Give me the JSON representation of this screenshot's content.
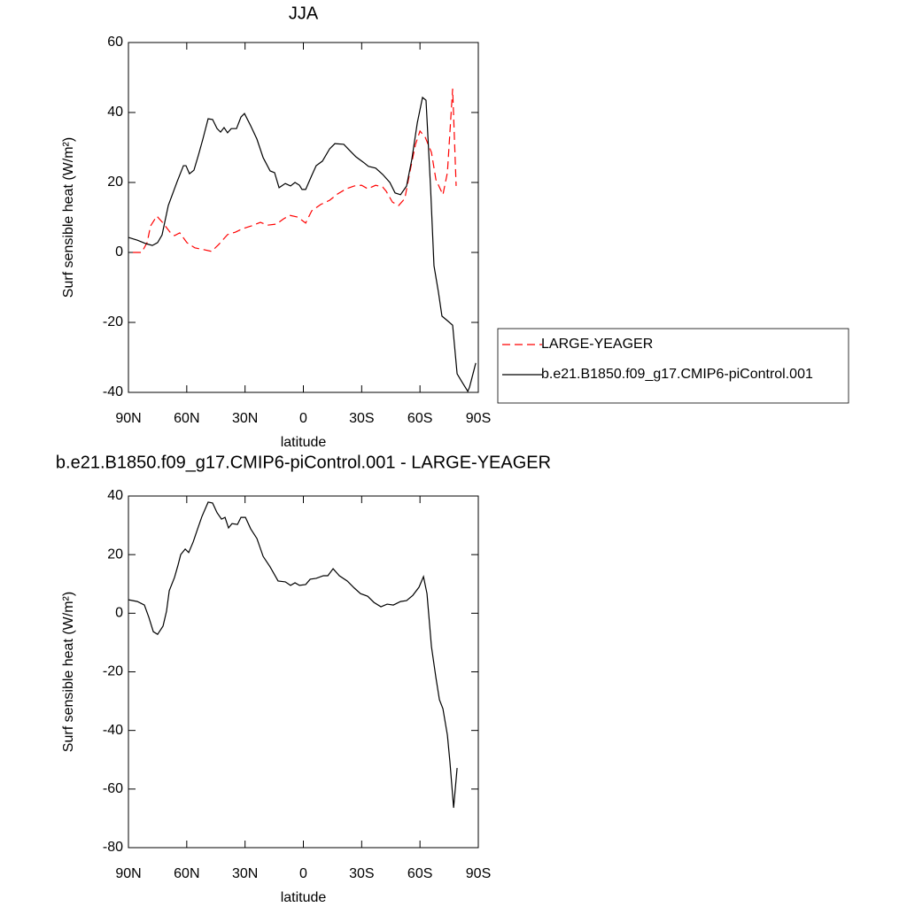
{
  "chart_data": [
    {
      "type": "line",
      "title": "JJA",
      "xlabel": "latitude",
      "ylabel": "Surf sensible heat (W/m²)",
      "xlim": [
        90,
        -90
      ],
      "xticks": [
        {
          "value": 90,
          "label": "90N"
        },
        {
          "value": 60,
          "label": "60N"
        },
        {
          "value": 30,
          "label": "30N"
        },
        0,
        {
          "value": -30,
          "label": "30S"
        },
        {
          "value": -60,
          "label": "60S"
        },
        {
          "value": -90,
          "label": "90S"
        }
      ],
      "ylim": [
        -40,
        60
      ],
      "yticks": [
        -40,
        -20,
        0,
        20,
        40,
        60
      ],
      "legend": "outside-right",
      "series": [
        {
          "name": "LARGE-YEAGER",
          "color": "#ff0000",
          "dash": "dashed",
          "x": [
            87.7,
            83.2,
            80.4,
            78.6,
            75.4,
            72.2,
            68.6,
            66.3,
            63.6,
            59.9,
            55.8,
            51.3,
            47.2,
            43.5,
            39,
            34.9,
            31.2,
            26.6,
            22.1,
            18.4,
            13.9,
            10.2,
            7,
            2.9,
            -1.2,
            -4.3,
            -8.9,
            -13.5,
            -17.6,
            -22.1,
            -26.2,
            -29.9,
            -33.1,
            -37.2,
            -40.8,
            -42.6,
            -45.8,
            -49,
            -52.2,
            -54.9,
            -57.7,
            -60,
            -62.7,
            -65.9,
            -68.2,
            -71.8,
            -74.1,
            -76.8,
            -78.6
          ],
          "values": [
            0,
            0,
            2.8,
            7.6,
            10.4,
            8.4,
            5.8,
            4.8,
            5.6,
            2.8,
            1.3,
            0.8,
            0.3,
            2.3,
            5.1,
            5.8,
            6.8,
            7.6,
            8.6,
            7.8,
            8.1,
            9.6,
            10.6,
            10.1,
            8.4,
            11.9,
            13.7,
            14.9,
            16.7,
            18.2,
            19,
            19.2,
            18.2,
            19.2,
            18.7,
            17.5,
            14.4,
            13.4,
            15.4,
            23.3,
            30.9,
            34.7,
            32.9,
            28.6,
            20.8,
            16.5,
            22.8,
            46.8,
            19
          ]
        },
        {
          "name": "b.e21.B1850.f09_g17.CMIP6-piControl.001",
          "color": "#000000",
          "dash": "solid",
          "x": [
            90,
            85.4,
            80.9,
            77.7,
            75,
            72.7,
            69.5,
            64.9,
            61.7,
            60.4,
            58.6,
            56.3,
            54,
            51.7,
            49,
            46.7,
            44.4,
            42.6,
            40.8,
            39,
            37.1,
            34.4,
            32.1,
            30.3,
            27.1,
            23.9,
            20.7,
            17.1,
            14.8,
            12.5,
            9.3,
            6.6,
            4.3,
            2,
            0.7,
            -1.2,
            -4.3,
            -6.6,
            -9.8,
            -13.5,
            -16.2,
            -20.8,
            -23.9,
            -27.1,
            -30.8,
            -33.5,
            -37.2,
            -40.8,
            -44.5,
            -47.2,
            -50,
            -53.1,
            -55.8,
            -58.6,
            -61.3,
            -63.1,
            -65.4,
            -67.2,
            -69.5,
            -71.3,
            -74.1,
            -76.8,
            -79.1,
            -81.8,
            -84.6,
            -85.5,
            -88.7
          ],
          "values": [
            4.3,
            3.5,
            2.5,
            2,
            2.8,
            5,
            13.4,
            20.3,
            24.8,
            24.8,
            22.5,
            23.5,
            27.8,
            32.4,
            38.2,
            38,
            35.4,
            34.4,
            35.7,
            34.2,
            35.4,
            35.4,
            38.7,
            39.7,
            36.2,
            32.4,
            27.1,
            23.3,
            22.8,
            18.5,
            19.7,
            19,
            20,
            19.2,
            18,
            18,
            22,
            24.8,
            26.1,
            29.6,
            31.1,
            30.9,
            29.1,
            27.3,
            25.8,
            24.6,
            24.1,
            22.3,
            20,
            17,
            16.5,
            19,
            26.6,
            37,
            44.3,
            43.5,
            19,
            -3.8,
            -11.4,
            -18.2,
            -19.5,
            -20.8,
            -34.7,
            -37.2,
            -39.7,
            -38.5,
            -31.6
          ]
        }
      ]
    },
    {
      "type": "line",
      "title": "b.e21.B1850.f09_g17.CMIP6-piControl.001 - LARGE-YEAGER",
      "xlabel": "latitude",
      "ylabel": "Surf sensible heat (W/m²)",
      "xlim": [
        90,
        -90
      ],
      "xticks": [
        {
          "value": 90,
          "label": "90N"
        },
        {
          "value": 60,
          "label": "60N"
        },
        {
          "value": 30,
          "label": "30N"
        },
        0,
        {
          "value": -30,
          "label": "30S"
        },
        {
          "value": -60,
          "label": "60S"
        },
        {
          "value": -90,
          "label": "90S"
        }
      ],
      "ylim": [
        -80,
        40
      ],
      "yticks": [
        -80,
        -60,
        -40,
        -20,
        0,
        20,
        40
      ],
      "series": [
        {
          "color": "#000000",
          "dash": "solid",
          "x": [
            90,
            85.4,
            81.8,
            79.5,
            77.2,
            75,
            72.2,
            70.4,
            69,
            66.3,
            64.5,
            63.1,
            60.8,
            59,
            56.7,
            54.4,
            52.2,
            49,
            46.7,
            44.4,
            42.1,
            40.3,
            38.5,
            36.7,
            33.9,
            32.1,
            29.8,
            27.1,
            23.9,
            20.7,
            17.1,
            13,
            9.3,
            6.6,
            4.3,
            2,
            -1.2,
            -3.5,
            -6.6,
            -10.3,
            -12.6,
            -15.3,
            -18.5,
            -22.6,
            -26.2,
            -29.4,
            -33.1,
            -36.3,
            -39.9,
            -43.1,
            -46.3,
            -50,
            -53.1,
            -56.3,
            -59.5,
            -61.8,
            -63.6,
            -65.9,
            -68.2,
            -70,
            -71.8,
            -74.1,
            -75.4,
            -77.3,
            -79.1
          ],
          "values": [
            4.6,
            4,
            2.8,
            -1.4,
            -6.3,
            -7.2,
            -4.4,
            0.7,
            7.7,
            12.2,
            16.4,
            20,
            21.9,
            20.7,
            24.3,
            28.8,
            33,
            37.9,
            37.6,
            34.3,
            32.1,
            32.7,
            29.1,
            30.6,
            30.3,
            32.7,
            32.7,
            28.8,
            25.5,
            19.4,
            15.8,
            11,
            10.7,
            9.5,
            10.4,
            9.5,
            9.8,
            11.6,
            11.9,
            12.8,
            12.8,
            15.2,
            12.8,
            11,
            8.6,
            6.7,
            5.8,
            3.7,
            2.2,
            3.1,
            2.8,
            4,
            4.3,
            6.1,
            8.9,
            12.5,
            6.7,
            -11.4,
            -22,
            -29.5,
            -32.6,
            -41.6,
            -50.7,
            -66.4,
            -52.8
          ]
        }
      ]
    }
  ]
}
